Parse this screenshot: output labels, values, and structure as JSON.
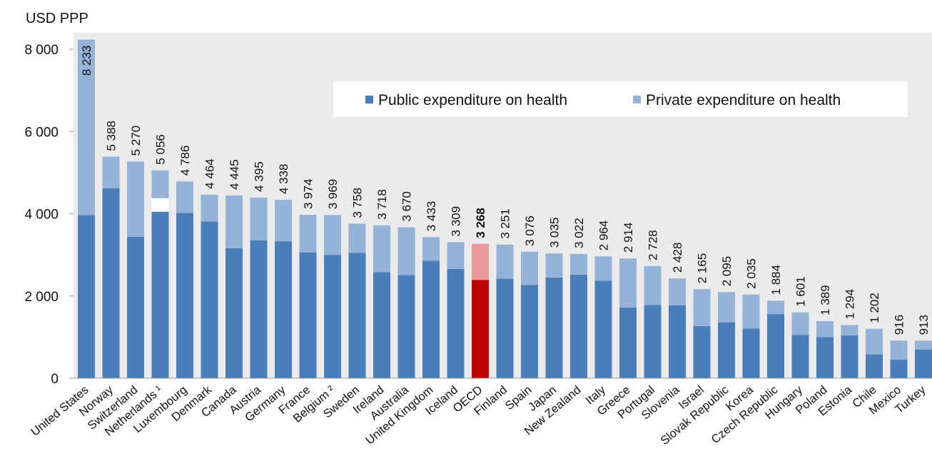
{
  "chart_data": {
    "type": "bar",
    "stacked": true,
    "yunit": "USD PPP",
    "ylim": [
      0,
      8400
    ],
    "yticks": [
      0,
      2000,
      4000,
      6000,
      8000
    ],
    "ytick_labels": [
      "0",
      "2 000",
      "4 000",
      "6 000",
      "8 000"
    ],
    "grid": false,
    "legend_position": "top-right",
    "categories": [
      "United States",
      "Norway",
      "Switzerland",
      "Netherlands ¹",
      "Luxembourg",
      "Denmark",
      "Canada",
      "Austria",
      "Germany",
      "France",
      "Belgium ²",
      "Sweden",
      "Ireland",
      "Australia",
      "United Kingdom",
      "Iceland",
      "OECD",
      "Finland",
      "Spain",
      "Japan",
      "New Zealand",
      "Italy",
      "Greece",
      "Portugal",
      "Slovenia",
      "Israel",
      "Slovak Republic",
      "Korea",
      "Czech Republic",
      "Hungary",
      "Poland",
      "Estonia",
      "Chile",
      "Mexico",
      "Turkey"
    ],
    "total_labels": [
      "8 233",
      "5 388",
      "5 270",
      "5 056",
      "4 786",
      "4 464",
      "4 445",
      "4 395",
      "4 338",
      "3 974",
      "3 969",
      "3 758",
      "3 718",
      "3 670",
      "3 433",
      "3 309",
      "3 268",
      "3 251",
      "3 076",
      "3 035",
      "3 022",
      "2 964",
      "2 914",
      "2 728",
      "2 428",
      "2 165",
      "2 095",
      "2 035",
      "1 884",
      "1 601",
      "1 389",
      "1 294",
      "1 202",
      "916",
      "913"
    ],
    "highlight_category": "OECD",
    "series": [
      {
        "name": "Public expenditure on health",
        "color": "#4a7ebb",
        "highlight_color": "#c00000",
        "values": [
          3970,
          4620,
          3440,
          4050,
          4020,
          3810,
          3160,
          3350,
          3330,
          3060,
          3000,
          3050,
          2580,
          2510,
          2860,
          2660,
          2390,
          2420,
          2270,
          2450,
          2520,
          2370,
          1720,
          1780,
          1770,
          1270,
          1360,
          1210,
          1560,
          1050,
          1000,
          1040,
          580,
          450,
          700
        ]
      },
      {
        "name": "Private expenditure on health",
        "color": "#95b3d7",
        "highlight_color": "#e6989b",
        "values": [
          4263,
          768,
          1830,
          1006,
          766,
          654,
          1285,
          1045,
          1008,
          914,
          969,
          708,
          1138,
          1160,
          573,
          649,
          878,
          831,
          806,
          585,
          502,
          594,
          1194,
          948,
          658,
          895,
          735,
          825,
          324,
          551,
          389,
          254,
          622,
          466,
          213
        ]
      }
    ],
    "gap_indicator": {
      "category": "Netherlands ¹",
      "from": 4050,
      "to": 4380
    },
    "bold_label_category": "OECD"
  }
}
